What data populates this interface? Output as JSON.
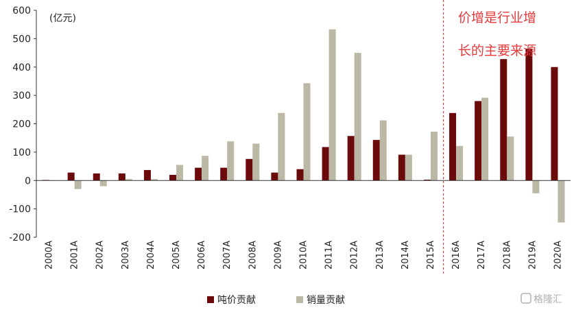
{
  "chart_data": {
    "type": "bar",
    "unit_label": "(亿元)",
    "categories": [
      "2000A",
      "2001A",
      "2002A",
      "2003A",
      "2004A",
      "2005A",
      "2006A",
      "2007A",
      "2008A",
      "2009A",
      "2010A",
      "2011A",
      "2012A",
      "2013A",
      "2014A",
      "2015A",
      "2016A",
      "2017A",
      "2018A",
      "2019A",
      "2020A"
    ],
    "series": [
      {
        "name": "吨价贡献",
        "color": "#6b0a0a",
        "values": [
          2,
          28,
          25,
          25,
          37,
          20,
          45,
          45,
          76,
          28,
          40,
          118,
          157,
          143,
          91,
          3,
          238,
          280,
          428,
          465,
          400
        ]
      },
      {
        "name": "销量贡献",
        "color": "#bbb8a6",
        "values": [
          1,
          -30,
          -20,
          5,
          5,
          55,
          87,
          138,
          130,
          238,
          343,
          533,
          450,
          212,
          91,
          172,
          122,
          292,
          155,
          -45,
          -148
        ]
      }
    ],
    "ylim": [
      -200,
      600
    ],
    "yticks": [
      600,
      500,
      400,
      300,
      200,
      100,
      0,
      -100,
      -200
    ],
    "annotation": {
      "line1": "价增是行业增",
      "line2": "长的主要来源",
      "color": "#e8393a",
      "divider_after": "2015A"
    },
    "legend_position": "bottom",
    "watermark": "格隆汇"
  }
}
